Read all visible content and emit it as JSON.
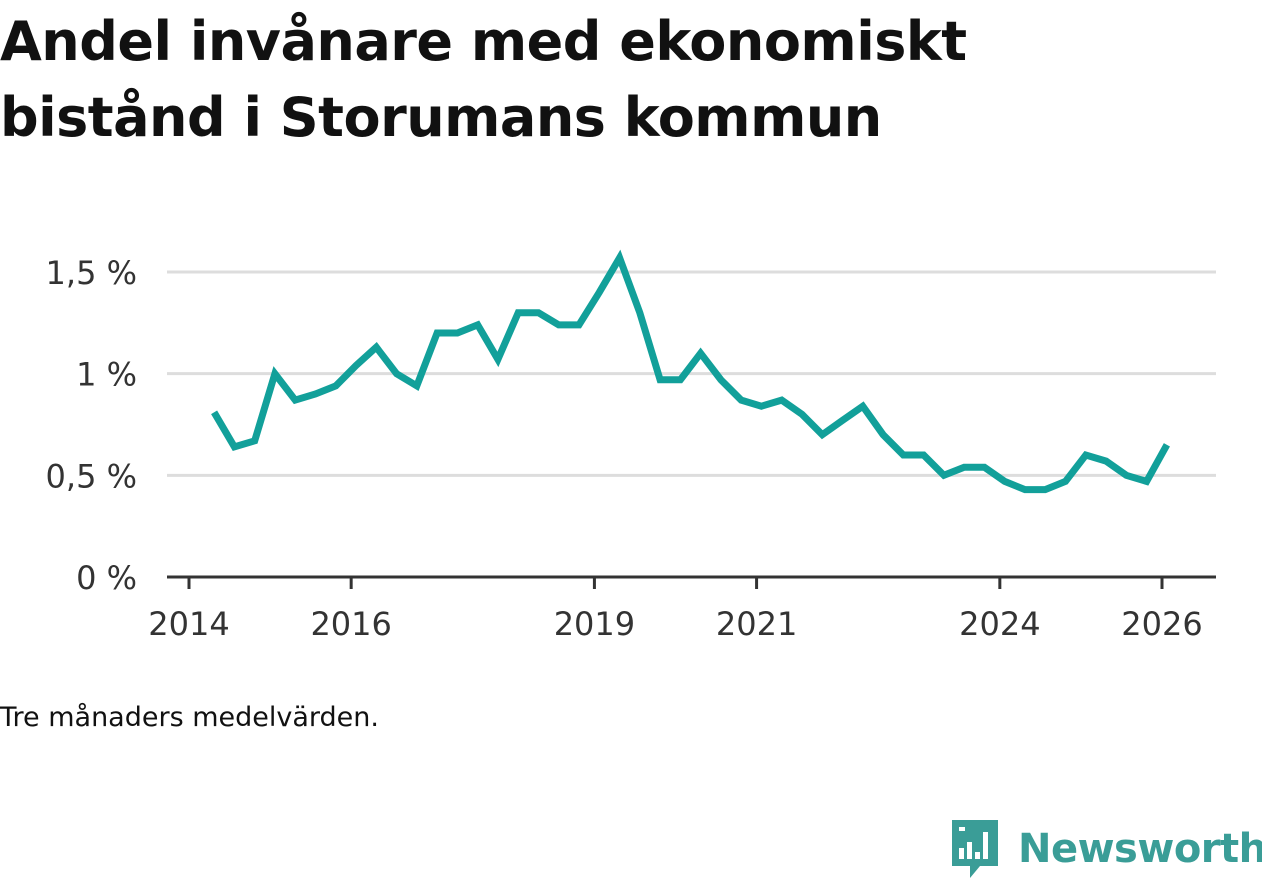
{
  "title": "Andel invånare med ekonomiskt bistånd i Storumans kommun",
  "footnote": "Tre månaders medelvärden.",
  "brand": {
    "name": "Newsworthy",
    "icon": "newsworthy-logo-icon",
    "color": "#3a9d97"
  },
  "chart_data": {
    "type": "line",
    "title": "Andel invånare med ekonomiskt bistånd i Storumans kommun",
    "xlabel": "",
    "ylabel": "",
    "xlim": [
      2014,
      2026.4
    ],
    "ylim": [
      0,
      1.5
    ],
    "grid": true,
    "x_ticks": [
      {
        "value": 2014,
        "label": "2014"
      },
      {
        "value": 2016,
        "label": "2016"
      },
      {
        "value": 2019,
        "label": "2019"
      },
      {
        "value": 2021,
        "label": "2021"
      },
      {
        "value": 2024,
        "label": "2024"
      },
      {
        "value": 2026,
        "label": "2026"
      }
    ],
    "y_ticks": [
      {
        "value": 0,
        "label": "0 %"
      },
      {
        "value": 0.5,
        "label": "0,5 %"
      },
      {
        "value": 1,
        "label": "1 %"
      },
      {
        "value": 1.5,
        "label": "1,5 %"
      }
    ],
    "series": [
      {
        "name": "Andel invånare med ekonomiskt bistånd",
        "color": "#12a09a",
        "x": [
          2014.31,
          2014.56,
          2014.81,
          2015.06,
          2015.31,
          2015.56,
          2015.81,
          2016.06,
          2016.31,
          2016.56,
          2016.81,
          2017.06,
          2017.31,
          2017.56,
          2017.81,
          2018.06,
          2018.31,
          2018.56,
          2018.81,
          2019.06,
          2019.31,
          2019.56,
          2019.81,
          2020.06,
          2020.31,
          2020.56,
          2020.81,
          2021.06,
          2021.31,
          2021.56,
          2021.81,
          2022.06,
          2022.31,
          2022.56,
          2022.81,
          2023.06,
          2023.31,
          2023.56,
          2023.81,
          2024.06,
          2024.31,
          2024.56,
          2024.81,
          2025.06,
          2025.31,
          2025.56,
          2025.81,
          2026.06
        ],
        "values": [
          0.81,
          0.64,
          0.67,
          1.0,
          0.87,
          0.9,
          0.94,
          1.04,
          1.13,
          1.0,
          0.94,
          1.2,
          1.2,
          1.24,
          1.07,
          1.3,
          1.3,
          1.24,
          1.24,
          1.4,
          1.57,
          1.3,
          0.97,
          0.97,
          1.1,
          0.97,
          0.87,
          0.84,
          0.87,
          0.8,
          0.7,
          0.77,
          0.84,
          0.7,
          0.6,
          0.6,
          0.5,
          0.54,
          0.54,
          0.47,
          0.43,
          0.43,
          0.47,
          0.6,
          0.57,
          0.5,
          0.47,
          0.65
        ]
      }
    ]
  }
}
